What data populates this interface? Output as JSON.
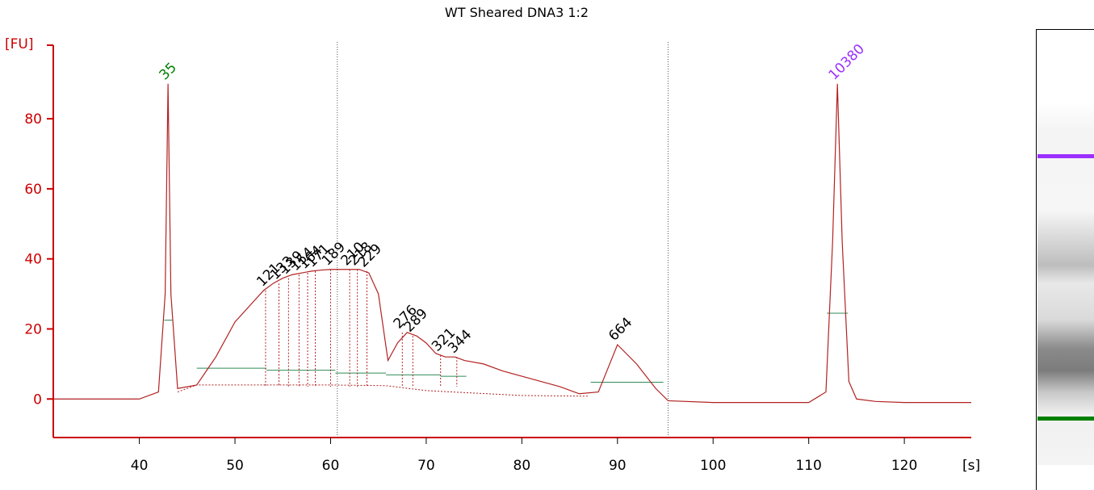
{
  "chart_data": {
    "type": "line",
    "title": "WT Sheared DNA3 1:2",
    "ylabel": "[FU]",
    "xlabel": "[s]",
    "xlim": [
      31,
      127
    ],
    "ylim": [
      -11,
      101
    ],
    "x_ticks": [
      40,
      50,
      60,
      70,
      80,
      90,
      100,
      110,
      120
    ],
    "y_ticks": [
      0,
      20,
      40,
      60,
      80
    ],
    "x_tick_labels": [
      "40",
      "50",
      "60",
      "70",
      "80",
      "90",
      "100",
      "110",
      "120"
    ],
    "y_tick_labels": [
      "0",
      "20",
      "40",
      "60",
      "80"
    ],
    "grid": false,
    "colors": {
      "axis": "#cc0000",
      "trace": "#b22222",
      "lower_marker": "#008000",
      "upper_marker": "#9b30ff",
      "peak_label": "#000000",
      "baseline": "#2e8b57"
    },
    "series": [
      {
        "x": [
          31,
          36,
          40,
          42,
          42.7,
          43.0,
          43.3,
          44,
          46,
          48,
          50,
          52,
          53,
          54,
          55,
          56,
          57,
          58,
          59,
          60,
          61,
          62,
          63,
          64,
          65,
          66,
          67,
          68,
          69,
          70,
          71,
          72,
          73,
          74,
          76,
          78,
          80,
          82,
          84,
          86,
          88,
          90,
          92,
          94,
          95.3,
          100,
          105,
          110,
          111.8,
          112.5,
          113.0,
          113.5,
          114.2,
          115,
          117,
          120,
          125,
          127
        ],
        "y": [
          0,
          0,
          0,
          2,
          30,
          90,
          30,
          3,
          4,
          12,
          22,
          28,
          31,
          33,
          34.5,
          35.5,
          36,
          36.5,
          36.8,
          37,
          37,
          37,
          37,
          36,
          30,
          11,
          16,
          19,
          18,
          16,
          13,
          12,
          12,
          11,
          10,
          8,
          6.5,
          5,
          3.5,
          1.5,
          2,
          15.5,
          10,
          3,
          -0.5,
          -1,
          -1,
          -1,
          2,
          45,
          90,
          45,
          5,
          0,
          -0.7,
          -1,
          -1,
          -1
        ]
      }
    ],
    "peaks": [
      {
        "label": "35",
        "x": 43.0,
        "y": 90
      },
      {
        "label": "121",
        "x": 53.2,
        "y": 31
      },
      {
        "label": "133",
        "x": 54.6,
        "y": 33
      },
      {
        "label": "139",
        "x": 55.6,
        "y": 34.5
      },
      {
        "label": "154",
        "x": 56.7,
        "y": 35.5
      },
      {
        "label": "164",
        "x": 57.6,
        "y": 36
      },
      {
        "label": "171",
        "x": 58.4,
        "y": 36.5
      },
      {
        "label": "189",
        "x": 60.0,
        "y": 37
      },
      {
        "label": "210",
        "x": 62.0,
        "y": 37
      },
      {
        "label": "218",
        "x": 62.8,
        "y": 37
      },
      {
        "label": "229",
        "x": 63.8,
        "y": 36.5
      },
      {
        "label": "276",
        "x": 67.5,
        "y": 19
      },
      {
        "label": "289",
        "x": 68.6,
        "y": 18
      },
      {
        "label": "321",
        "x": 71.5,
        "y": 12.5
      },
      {
        "label": "344",
        "x": 73.2,
        "y": 12
      },
      {
        "label": "664",
        "x": 90.0,
        "y": 15.5
      },
      {
        "label": "10380",
        "x": 113.0,
        "y": 90
      }
    ],
    "ladder_lanes": [
      "lower-marker",
      "upper-marker"
    ]
  }
}
